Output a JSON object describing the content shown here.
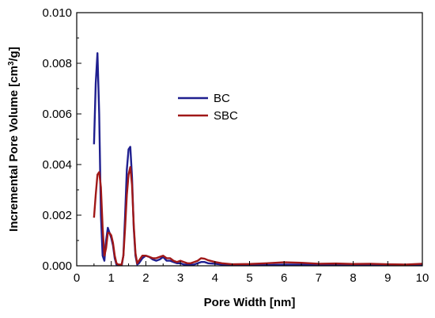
{
  "chart_data": {
    "type": "line",
    "xlabel": "Pore Width [nm]",
    "ylabel_main": "Incremental Pore Volume [cm",
    "ylabel_sup": "3",
    "ylabel_end": "/g]",
    "xlim": [
      0,
      10
    ],
    "ylim": [
      0,
      0.01
    ],
    "x_ticks": [
      0,
      1,
      2,
      3,
      4,
      5,
      6,
      7,
      8,
      9,
      10
    ],
    "x_tick_labels": [
      "0",
      "1",
      "2",
      "3",
      "4",
      "5",
      "6",
      "7",
      "8",
      "9",
      "10"
    ],
    "y_ticks": [
      0,
      0.002,
      0.004,
      0.006,
      0.008,
      0.01
    ],
    "y_tick_labels": [
      "0.000",
      "0.002",
      "0.004",
      "0.006",
      "0.008",
      "0.010"
    ],
    "grid": false,
    "legend_position": "center-left",
    "series": [
      {
        "name": "BC",
        "color": "#1f1f8f",
        "points": [
          [
            0.5,
            0.0048
          ],
          [
            0.55,
            0.0072
          ],
          [
            0.6,
            0.0084
          ],
          [
            0.65,
            0.006
          ],
          [
            0.7,
            0.002
          ],
          [
            0.75,
            0.0004
          ],
          [
            0.8,
            0.0002
          ],
          [
            0.85,
            0.001
          ],
          [
            0.9,
            0.0015
          ],
          [
            0.95,
            0.0013
          ],
          [
            1.0,
            0.0011
          ],
          [
            1.05,
            0.0008
          ],
          [
            1.1,
            0.0003
          ],
          [
            1.15,
            5e-05
          ],
          [
            1.2,
            0.0
          ],
          [
            1.3,
            0.0
          ],
          [
            1.35,
            0.0004
          ],
          [
            1.4,
            0.002
          ],
          [
            1.45,
            0.0038
          ],
          [
            1.5,
            0.0046
          ],
          [
            1.55,
            0.0047
          ],
          [
            1.6,
            0.0035
          ],
          [
            1.65,
            0.0015
          ],
          [
            1.7,
            0.0004
          ],
          [
            1.75,
            5e-05
          ],
          [
            1.8,
            0.0001
          ],
          [
            1.9,
            0.0003
          ],
          [
            2.0,
            0.0004
          ],
          [
            2.1,
            0.00035
          ],
          [
            2.2,
            0.00025
          ],
          [
            2.3,
            0.0002
          ],
          [
            2.4,
            0.00025
          ],
          [
            2.5,
            0.00035
          ],
          [
            2.6,
            0.0002
          ],
          [
            2.7,
            0.0002
          ],
          [
            2.8,
            0.00015
          ],
          [
            2.9,
            0.0001
          ],
          [
            3.0,
            0.0001
          ],
          [
            3.1,
            5e-05
          ],
          [
            3.2,
            5e-05
          ],
          [
            3.4,
            5e-05
          ],
          [
            3.5,
            0.0001
          ],
          [
            3.6,
            0.00015
          ],
          [
            3.7,
            0.00015
          ],
          [
            3.8,
            0.0001
          ],
          [
            4.0,
            8e-05
          ],
          [
            4.2,
            5e-05
          ],
          [
            4.5,
            2e-05
          ],
          [
            5.0,
            2e-05
          ],
          [
            5.5,
            3e-05
          ],
          [
            6.0,
            5e-05
          ],
          [
            6.5,
            5e-05
          ],
          [
            7.0,
            3e-05
          ],
          [
            7.5,
            3e-05
          ],
          [
            8.0,
            3e-05
          ],
          [
            8.5,
            4e-05
          ],
          [
            9.0,
            3e-05
          ],
          [
            9.5,
            3e-05
          ],
          [
            10.0,
            3e-05
          ]
        ]
      },
      {
        "name": "SBC",
        "color": "#a01818",
        "points": [
          [
            0.5,
            0.0019
          ],
          [
            0.55,
            0.0028
          ],
          [
            0.6,
            0.0036
          ],
          [
            0.65,
            0.0037
          ],
          [
            0.7,
            0.0031
          ],
          [
            0.75,
            0.0015
          ],
          [
            0.8,
            0.0004
          ],
          [
            0.85,
            0.0007
          ],
          [
            0.9,
            0.0013
          ],
          [
            0.95,
            0.0013
          ],
          [
            1.0,
            0.0012
          ],
          [
            1.05,
            0.0009
          ],
          [
            1.1,
            0.0004
          ],
          [
            1.15,
            0.0001
          ],
          [
            1.2,
            5e-05
          ],
          [
            1.3,
            5e-05
          ],
          [
            1.35,
            0.0004
          ],
          [
            1.4,
            0.0015
          ],
          [
            1.45,
            0.0028
          ],
          [
            1.5,
            0.0036
          ],
          [
            1.55,
            0.0039
          ],
          [
            1.6,
            0.0032
          ],
          [
            1.65,
            0.0016
          ],
          [
            1.7,
            0.0005
          ],
          [
            1.75,
            0.0001
          ],
          [
            1.8,
            0.0002
          ],
          [
            1.9,
            0.0004
          ],
          [
            2.0,
            0.0004
          ],
          [
            2.1,
            0.00035
          ],
          [
            2.2,
            0.0003
          ],
          [
            2.3,
            0.0003
          ],
          [
            2.4,
            0.00035
          ],
          [
            2.5,
            0.0004
          ],
          [
            2.6,
            0.0003
          ],
          [
            2.7,
            0.0003
          ],
          [
            2.8,
            0.0002
          ],
          [
            2.9,
            0.00015
          ],
          [
            3.0,
            0.0002
          ],
          [
            3.1,
            0.00015
          ],
          [
            3.2,
            0.0001
          ],
          [
            3.3,
            0.0001
          ],
          [
            3.4,
            0.00015
          ],
          [
            3.5,
            0.0002
          ],
          [
            3.6,
            0.0003
          ],
          [
            3.7,
            0.00028
          ],
          [
            3.8,
            0.00022
          ],
          [
            4.0,
            0.00015
          ],
          [
            4.2,
            0.0001
          ],
          [
            4.5,
            6e-05
          ],
          [
            5.0,
            7e-05
          ],
          [
            5.5,
            0.0001
          ],
          [
            6.0,
            0.00014
          ],
          [
            6.5,
            0.00012
          ],
          [
            7.0,
            8e-05
          ],
          [
            7.5,
            9e-05
          ],
          [
            8.0,
            7e-05
          ],
          [
            8.5,
            8e-05
          ],
          [
            9.0,
            6e-05
          ],
          [
            9.5,
            5e-05
          ],
          [
            10.0,
            8e-05
          ]
        ]
      }
    ]
  }
}
